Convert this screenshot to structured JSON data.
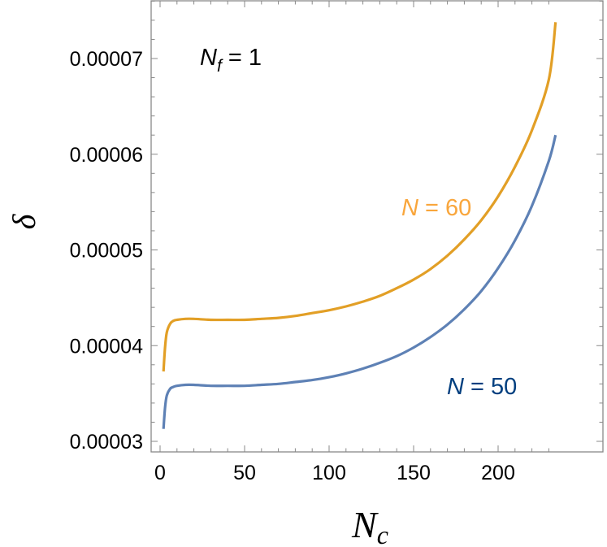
{
  "chart_data": {
    "type": "line",
    "title": "",
    "xlabel": "N_c",
    "ylabel": "δ",
    "xlim": [
      -5,
      236
    ],
    "ylim": [
      2.89e-05,
      7.61e-05
    ],
    "xticks": [
      0,
      50,
      100,
      150,
      200
    ],
    "xtick_labels": [
      "0",
      "50",
      "100",
      "150",
      "200"
    ],
    "yticks": [
      3e-05,
      4e-05,
      5e-05,
      6e-05,
      7e-05
    ],
    "ytick_labels": [
      "0.00003",
      "0.00004",
      "0.00005",
      "0.00006",
      "0.00007"
    ],
    "grid": false,
    "legend": "none (inline curve labels)",
    "annotations": [
      {
        "text": "N_f = 1",
        "x": 30,
        "y": 7e-05
      },
      {
        "text": "N = 60",
        "x": 155,
        "y": 5.45e-05
      },
      {
        "text": "N = 50",
        "x": 175,
        "y": 3.55e-05
      }
    ],
    "series": [
      {
        "name": "N = 60",
        "color": "#E29F26",
        "x": [
          2,
          3,
          4,
          6,
          8,
          10,
          15,
          20,
          30,
          40,
          50,
          60,
          70,
          80,
          90,
          100,
          110,
          120,
          130,
          140,
          150,
          160,
          170,
          180,
          190,
          200,
          210,
          220,
          230,
          234
        ],
        "values": [
          3.73e-05,
          3.99e-05,
          4.14e-05,
          4.23e-05,
          4.26e-05,
          4.27e-05,
          4.28e-05,
          4.28e-05,
          4.27e-05,
          4.27e-05,
          4.27e-05,
          4.28e-05,
          4.29e-05,
          4.31e-05,
          4.34e-05,
          4.37e-05,
          4.41e-05,
          4.46e-05,
          4.52e-05,
          4.6e-05,
          4.69e-05,
          4.8e-05,
          4.94e-05,
          5.11e-05,
          5.31e-05,
          5.56e-05,
          5.87e-05,
          6.25e-05,
          6.78e-05,
          7.38e-05
        ]
      },
      {
        "name": "N = 50",
        "color": "#5E81B5",
        "x": [
          2,
          3,
          4,
          6,
          8,
          10,
          15,
          20,
          30,
          40,
          50,
          60,
          70,
          80,
          90,
          100,
          110,
          120,
          130,
          140,
          150,
          160,
          170,
          180,
          190,
          200,
          210,
          220,
          230,
          234
        ],
        "values": [
          3.13e-05,
          3.36e-05,
          3.48e-05,
          3.55e-05,
          3.57e-05,
          3.58e-05,
          3.59e-05,
          3.59e-05,
          3.58e-05,
          3.58e-05,
          3.58e-05,
          3.59e-05,
          3.6e-05,
          3.62e-05,
          3.64e-05,
          3.67e-05,
          3.71e-05,
          3.76e-05,
          3.82e-05,
          3.89e-05,
          3.98e-05,
          4.09e-05,
          4.22e-05,
          4.38e-05,
          4.57e-05,
          4.81e-05,
          5.1e-05,
          5.46e-05,
          5.93e-05,
          6.2e-05
        ]
      }
    ]
  },
  "labels": {
    "y_axis": "δ",
    "x_axis_main": "N",
    "x_axis_sub": "c",
    "nf_main": "N",
    "nf_sub": "f",
    "nf_value": " = 1",
    "n60_var": "N",
    "n60_value": " = 60",
    "n50_var": "N",
    "n50_value": " = 50"
  },
  "colors": {
    "series_60": "#E29F26",
    "series_50": "#5E81B5",
    "label_60": "#F9A63C",
    "label_50": "#003F7F",
    "frame": "#888888"
  }
}
